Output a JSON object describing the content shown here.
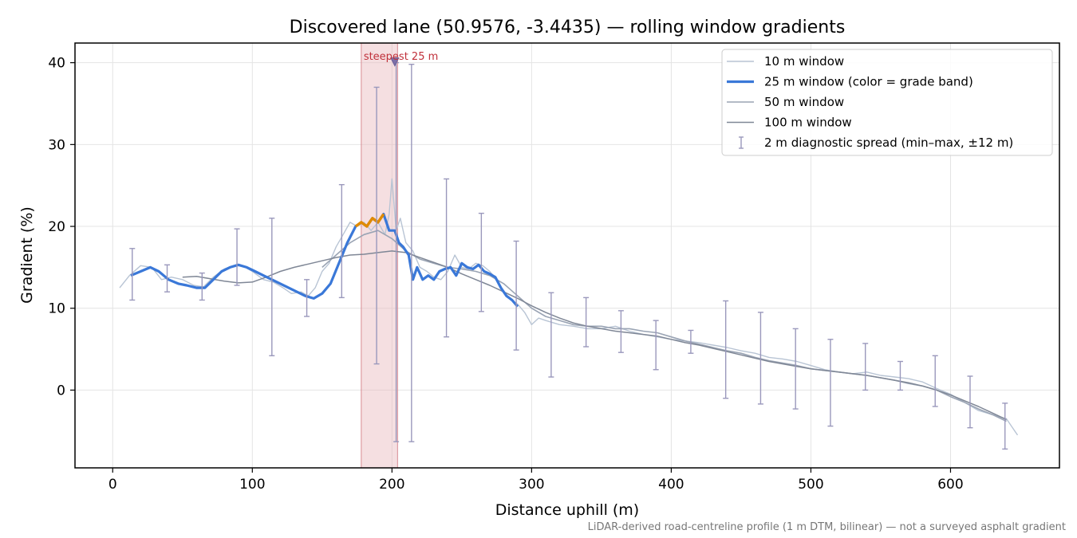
{
  "chart_data": {
    "type": "line",
    "title": "Discovered lane (50.9576, -3.4435) — rolling window gradients",
    "xlabel": "Distance uphill (m)",
    "ylabel": "Gradient (%)",
    "xlim": [
      -27,
      678
    ],
    "ylim": [
      -9.5,
      42.4
    ],
    "xticks": [
      0,
      100,
      200,
      300,
      400,
      500,
      600
    ],
    "yticks": [
      0,
      10,
      20,
      30,
      40
    ],
    "grid": true,
    "legend_position": "top-right",
    "footnote": "LiDAR-derived road-centreline profile (1 m DTM, bilinear) — not a surveyed asphalt gradient",
    "colors": {
      "w10": "#b8c4d4",
      "w25": "#3a78d8",
      "w25_steep": "#e08a00",
      "w50": "#9aa4b4",
      "w100": "#7f8796",
      "errorbar": "#9a98bc",
      "highlight": "#e8b8bd",
      "annotation": "#c0303a"
    },
    "highlight": {
      "x_start": 178,
      "x_end": 204,
      "label": "steepest 25 m",
      "peak_x": 202,
      "peak_y": 40
    },
    "legend": [
      {
        "key": "w10",
        "label": "10 m window"
      },
      {
        "key": "w25",
        "label": "25 m window (color = grade band)"
      },
      {
        "key": "w50",
        "label": "50 m window"
      },
      {
        "key": "w100",
        "label": "100 m window"
      },
      {
        "key": "errorbar",
        "label": "2 m diagnostic spread (min–max, ±12 m)"
      }
    ],
    "series": [
      {
        "name": "10 m window",
        "key": "w10",
        "x": [
          5,
          12,
          20,
          28,
          35,
          42,
          50,
          58,
          65,
          72,
          80,
          88,
          95,
          100,
          108,
          115,
          122,
          128,
          135,
          140,
          145,
          150,
          155,
          160,
          165,
          170,
          175,
          180,
          185,
          190,
          195,
          198,
          200,
          203,
          206,
          210,
          215,
          220,
          225,
          230,
          235,
          240,
          245,
          250,
          255,
          260,
          265,
          270,
          275,
          280,
          285,
          290,
          295,
          300,
          305,
          310,
          320,
          330,
          340,
          350,
          360,
          370,
          380,
          390,
          400,
          410,
          420,
          430,
          440,
          450,
          460,
          470,
          480,
          490,
          500,
          510,
          520,
          530,
          540,
          550,
          560,
          570,
          580,
          590,
          600,
          610,
          620,
          630,
          640,
          648
        ],
        "y": [
          12.5,
          14.0,
          15.2,
          15.0,
          13.5,
          13.8,
          13.5,
          12.8,
          12.6,
          13.8,
          14.8,
          15.3,
          15.0,
          14.5,
          13.5,
          13.2,
          12.5,
          11.8,
          12.0,
          11.5,
          12.5,
          14.5,
          15.5,
          17.5,
          19.0,
          20.5,
          20.0,
          20.5,
          19.5,
          20.5,
          19.0,
          21.5,
          25.8,
          19.5,
          21.0,
          18.0,
          17.0,
          15.0,
          14.5,
          13.8,
          13.5,
          14.5,
          16.5,
          15.0,
          14.8,
          15.5,
          15.2,
          14.5,
          13.5,
          12.0,
          11.0,
          10.5,
          9.5,
          8.0,
          8.8,
          8.5,
          8.0,
          7.8,
          7.5,
          7.5,
          7.8,
          7.2,
          6.8,
          6.5,
          6.2,
          6.0,
          5.8,
          5.5,
          5.2,
          4.8,
          4.5,
          4.0,
          3.8,
          3.5,
          3.0,
          2.5,
          2.2,
          2.0,
          2.2,
          1.8,
          1.6,
          1.4,
          1.0,
          0.2,
          -0.5,
          -1.5,
          -2.5,
          -3.0,
          -3.5,
          -5.5
        ]
      },
      {
        "name": "25 m window (color = grade band)",
        "key": "w25",
        "x": [
          13,
          20,
          27,
          33,
          40,
          47,
          53,
          60,
          66,
          72,
          78,
          84,
          90,
          96,
          102,
          108,
          114,
          120,
          126,
          132,
          138,
          144,
          150,
          156,
          162,
          168,
          174,
          178,
          182,
          186,
          190,
          194,
          198,
          202,
          205,
          208,
          212,
          215,
          218,
          222,
          226,
          230,
          234,
          238,
          242,
          246,
          250,
          254,
          258,
          262,
          266,
          270,
          274,
          278,
          282,
          286,
          290
        ],
        "y": [
          14.0,
          14.5,
          15.0,
          14.5,
          13.5,
          13.0,
          12.8,
          12.5,
          12.5,
          13.5,
          14.5,
          15.0,
          15.3,
          15.0,
          14.5,
          14.0,
          13.5,
          13.0,
          12.5,
          12.0,
          11.5,
          11.2,
          11.8,
          13.0,
          15.5,
          18.0,
          20.0,
          20.5,
          20.0,
          21.0,
          20.5,
          21.5,
          19.5,
          19.5,
          18.0,
          17.5,
          16.5,
          13.5,
          15.0,
          13.5,
          14.0,
          13.5,
          14.5,
          14.8,
          15.0,
          14.0,
          15.5,
          15.0,
          14.8,
          15.3,
          14.5,
          14.2,
          13.8,
          12.5,
          11.5,
          11.0,
          10.2
        ]
      },
      {
        "name": "50 m window",
        "key": "w50",
        "x": [
          150,
          160,
          170,
          180,
          190,
          200,
          210,
          220,
          230,
          240,
          250,
          260,
          270,
          280,
          290,
          300,
          310,
          320,
          330,
          340,
          350,
          360,
          370,
          380,
          390,
          400,
          410,
          420,
          430,
          440,
          450,
          460,
          470,
          480,
          490,
          500,
          510,
          520,
          530,
          540,
          550,
          560,
          570,
          580,
          590,
          600,
          610,
          620,
          630,
          640
        ],
        "y": [
          15.0,
          16.5,
          18.0,
          19.0,
          19.5,
          18.5,
          17.0,
          16.0,
          15.5,
          15.0,
          14.8,
          14.5,
          14.0,
          13.0,
          11.5,
          10.0,
          9.0,
          8.5,
          8.0,
          7.8,
          7.8,
          7.5,
          7.5,
          7.2,
          7.0,
          6.5,
          6.0,
          5.6,
          5.2,
          4.8,
          4.5,
          4.0,
          3.6,
          3.3,
          3.0,
          2.6,
          2.4,
          2.2,
          2.0,
          1.8,
          1.5,
          1.2,
          0.8,
          0.5,
          0.0,
          -0.8,
          -1.5,
          -2.3,
          -3.0,
          -3.8
        ]
      },
      {
        "name": "100 m window",
        "key": "w100",
        "x": [
          50,
          60,
          70,
          80,
          90,
          100,
          110,
          120,
          130,
          140,
          150,
          160,
          170,
          180,
          190,
          200,
          210,
          220,
          230,
          240,
          250,
          260,
          270,
          280,
          290,
          300,
          310,
          320,
          330,
          340,
          350,
          360,
          370,
          380,
          390,
          400,
          410,
          420,
          430,
          440,
          450,
          460,
          470,
          480,
          490,
          500,
          510,
          520,
          530,
          540,
          550,
          560,
          570,
          580,
          590,
          600,
          610,
          620,
          630,
          640
        ],
        "y": [
          13.8,
          13.9,
          13.6,
          13.3,
          13.1,
          13.2,
          13.8,
          14.5,
          15.0,
          15.4,
          15.8,
          16.2,
          16.5,
          16.6,
          16.8,
          17.0,
          16.8,
          16.2,
          15.6,
          15.0,
          14.2,
          13.5,
          12.8,
          12.0,
          11.2,
          10.3,
          9.5,
          8.8,
          8.2,
          7.8,
          7.5,
          7.2,
          7.0,
          6.8,
          6.6,
          6.2,
          5.8,
          5.5,
          5.1,
          4.7,
          4.3,
          3.9,
          3.5,
          3.2,
          2.9,
          2.6,
          2.4,
          2.2,
          2.0,
          1.8,
          1.5,
          1.2,
          0.9,
          0.5,
          0.0,
          -0.6,
          -1.3,
          -2.0,
          -2.8,
          -3.6
        ]
      }
    ],
    "errorbars": [
      {
        "x": 14,
        "lo": 11.0,
        "hi": 17.3
      },
      {
        "x": 39,
        "lo": 12.0,
        "hi": 15.3
      },
      {
        "x": 64,
        "lo": 11.0,
        "hi": 14.3
      },
      {
        "x": 89,
        "lo": 12.8,
        "hi": 19.7
      },
      {
        "x": 114,
        "lo": 4.2,
        "hi": 21.0
      },
      {
        "x": 139,
        "lo": 9.0,
        "hi": 13.5
      },
      {
        "x": 164,
        "lo": 11.3,
        "hi": 25.1
      },
      {
        "x": 189,
        "lo": 3.2,
        "hi": 37.0
      },
      {
        "x": 203,
        "lo": -6.3,
        "hi": 40.0
      },
      {
        "x": 214,
        "lo": -6.3,
        "hi": 39.8
      },
      {
        "x": 239,
        "lo": 6.5,
        "hi": 25.8
      },
      {
        "x": 264,
        "lo": 9.6,
        "hi": 21.6
      },
      {
        "x": 289,
        "lo": 4.9,
        "hi": 18.2
      },
      {
        "x": 314,
        "lo": 1.6,
        "hi": 11.9
      },
      {
        "x": 339,
        "lo": 5.3,
        "hi": 11.3
      },
      {
        "x": 364,
        "lo": 4.6,
        "hi": 9.7
      },
      {
        "x": 389,
        "lo": 2.5,
        "hi": 8.5
      },
      {
        "x": 414,
        "lo": 4.5,
        "hi": 7.3
      },
      {
        "x": 439,
        "lo": -1.0,
        "hi": 10.9
      },
      {
        "x": 464,
        "lo": -1.7,
        "hi": 9.5
      },
      {
        "x": 489,
        "lo": -2.3,
        "hi": 7.5
      },
      {
        "x": 514,
        "lo": -4.4,
        "hi": 6.2
      },
      {
        "x": 539,
        "lo": 0.0,
        "hi": 5.7
      },
      {
        "x": 564,
        "lo": 0.0,
        "hi": 3.5
      },
      {
        "x": 589,
        "lo": -2.0,
        "hi": 4.2
      },
      {
        "x": 614,
        "lo": -4.6,
        "hi": 1.7
      },
      {
        "x": 639,
        "lo": -7.2,
        "hi": -1.6
      }
    ]
  }
}
